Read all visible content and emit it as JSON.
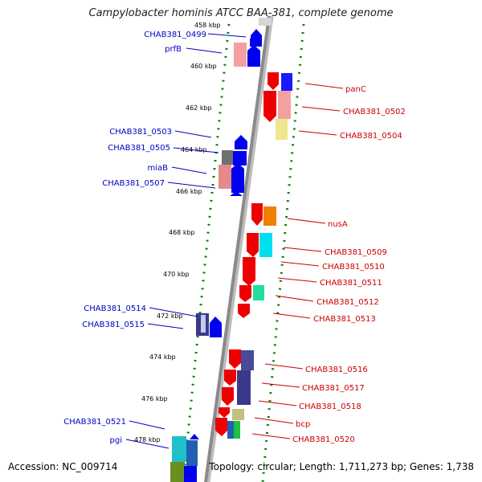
{
  "title": "Campylobacter hominis ATCC BAA-381, complete genome",
  "footer": {
    "accession": "Accession: NC_009714",
    "stats": "Topology: circular; Length: 1,711,273 bp; Genes: 1,738"
  },
  "colors": {
    "left_label": "#0000c0",
    "right_label": "#cc0000",
    "tick": "#008000",
    "axis": "#909090"
  },
  "ruler": [
    "458 kbp",
    "460 kbp",
    "462 kbp",
    "464 kbp",
    "466 kbp",
    "468 kbp",
    "470 kbp",
    "472 kbp",
    "474 kbp",
    "476 kbp",
    "478 kbp"
  ],
  "left_labels": [
    "CHAB381_0499",
    "prfB",
    "CHAB381_0503",
    "CHAB381_0505",
    "miaB",
    "CHAB381_0507",
    "CHAB381_0514",
    "CHAB381_0515",
    "CHAB381_0521",
    "pgi"
  ],
  "right_labels": [
    "panC",
    "CHAB381_0502",
    "CHAB381_0504",
    "nusA",
    "CHAB381_0509",
    "CHAB381_0510",
    "CHAB381_0511",
    "CHAB381_0512",
    "CHAB381_0513",
    "CHAB381_0516",
    "CHAB381_0517",
    "CHAB381_0518",
    "bcp",
    "CHAB381_0520"
  ]
}
